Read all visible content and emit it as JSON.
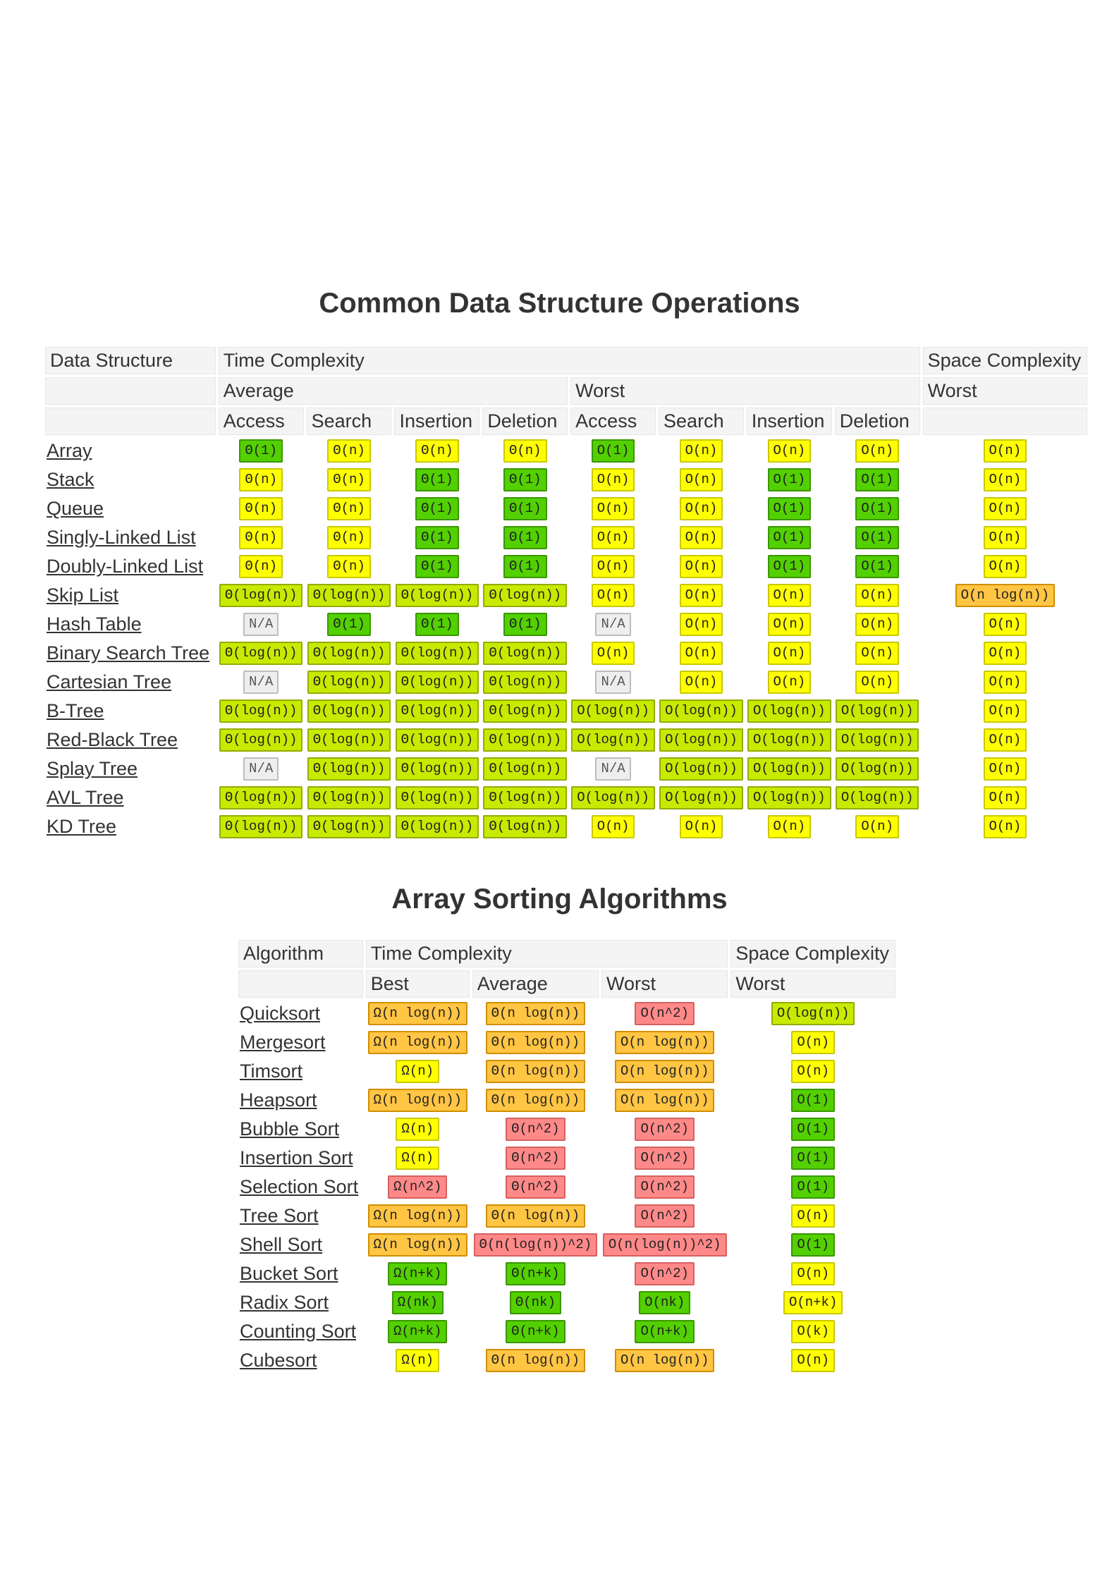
{
  "ds": {
    "title": "Common Data Structure Operations",
    "headers": {
      "structure": "Data Structure",
      "time": "Time Complexity",
      "space": "Space Complexity",
      "average": "Average",
      "worst": "Worst",
      "space_worst": "Worst",
      "ops": [
        "Access",
        "Search",
        "Insertion",
        "Deletion",
        "Access",
        "Search",
        "Insertion",
        "Deletion"
      ]
    },
    "rows": [
      {
        "name": "Array",
        "cells": [
          [
            "Θ(1)",
            "green"
          ],
          [
            "Θ(n)",
            "yellow"
          ],
          [
            "Θ(n)",
            "yellow"
          ],
          [
            "Θ(n)",
            "yellow"
          ],
          [
            "O(1)",
            "green"
          ],
          [
            "O(n)",
            "yellow"
          ],
          [
            "O(n)",
            "yellow"
          ],
          [
            "O(n)",
            "yellow"
          ],
          [
            "O(n)",
            "yellow"
          ]
        ]
      },
      {
        "name": "Stack",
        "cells": [
          [
            "Θ(n)",
            "yellow"
          ],
          [
            "Θ(n)",
            "yellow"
          ],
          [
            "Θ(1)",
            "green"
          ],
          [
            "Θ(1)",
            "green"
          ],
          [
            "O(n)",
            "yellow"
          ],
          [
            "O(n)",
            "yellow"
          ],
          [
            "O(1)",
            "green"
          ],
          [
            "O(1)",
            "green"
          ],
          [
            "O(n)",
            "yellow"
          ]
        ]
      },
      {
        "name": "Queue",
        "cells": [
          [
            "Θ(n)",
            "yellow"
          ],
          [
            "Θ(n)",
            "yellow"
          ],
          [
            "Θ(1)",
            "green"
          ],
          [
            "Θ(1)",
            "green"
          ],
          [
            "O(n)",
            "yellow"
          ],
          [
            "O(n)",
            "yellow"
          ],
          [
            "O(1)",
            "green"
          ],
          [
            "O(1)",
            "green"
          ],
          [
            "O(n)",
            "yellow"
          ]
        ]
      },
      {
        "name": "Singly-Linked List",
        "cells": [
          [
            "Θ(n)",
            "yellow"
          ],
          [
            "Θ(n)",
            "yellow"
          ],
          [
            "Θ(1)",
            "green"
          ],
          [
            "Θ(1)",
            "green"
          ],
          [
            "O(n)",
            "yellow"
          ],
          [
            "O(n)",
            "yellow"
          ],
          [
            "O(1)",
            "green"
          ],
          [
            "O(1)",
            "green"
          ],
          [
            "O(n)",
            "yellow"
          ]
        ]
      },
      {
        "name": "Doubly-Linked List",
        "cells": [
          [
            "Θ(n)",
            "yellow"
          ],
          [
            "Θ(n)",
            "yellow"
          ],
          [
            "Θ(1)",
            "green"
          ],
          [
            "Θ(1)",
            "green"
          ],
          [
            "O(n)",
            "yellow"
          ],
          [
            "O(n)",
            "yellow"
          ],
          [
            "O(1)",
            "green"
          ],
          [
            "O(1)",
            "green"
          ],
          [
            "O(n)",
            "yellow"
          ]
        ]
      },
      {
        "name": "Skip List",
        "cells": [
          [
            "Θ(log(n))",
            "lightgreen"
          ],
          [
            "Θ(log(n))",
            "lightgreen"
          ],
          [
            "Θ(log(n))",
            "lightgreen"
          ],
          [
            "Θ(log(n))",
            "lightgreen"
          ],
          [
            "O(n)",
            "yellow"
          ],
          [
            "O(n)",
            "yellow"
          ],
          [
            "O(n)",
            "yellow"
          ],
          [
            "O(n)",
            "yellow"
          ],
          [
            "O(n log(n))",
            "orange"
          ]
        ]
      },
      {
        "name": "Hash Table",
        "cells": [
          [
            "N/A",
            "gray"
          ],
          [
            "Θ(1)",
            "green"
          ],
          [
            "Θ(1)",
            "green"
          ],
          [
            "Θ(1)",
            "green"
          ],
          [
            "N/A",
            "gray"
          ],
          [
            "O(n)",
            "yellow"
          ],
          [
            "O(n)",
            "yellow"
          ],
          [
            "O(n)",
            "yellow"
          ],
          [
            "O(n)",
            "yellow"
          ]
        ]
      },
      {
        "name": "Binary Search Tree",
        "cells": [
          [
            "Θ(log(n))",
            "lightgreen"
          ],
          [
            "Θ(log(n))",
            "lightgreen"
          ],
          [
            "Θ(log(n))",
            "lightgreen"
          ],
          [
            "Θ(log(n))",
            "lightgreen"
          ],
          [
            "O(n)",
            "yellow"
          ],
          [
            "O(n)",
            "yellow"
          ],
          [
            "O(n)",
            "yellow"
          ],
          [
            "O(n)",
            "yellow"
          ],
          [
            "O(n)",
            "yellow"
          ]
        ]
      },
      {
        "name": "Cartesian Tree",
        "cells": [
          [
            "N/A",
            "gray"
          ],
          [
            "Θ(log(n))",
            "lightgreen"
          ],
          [
            "Θ(log(n))",
            "lightgreen"
          ],
          [
            "Θ(log(n))",
            "lightgreen"
          ],
          [
            "N/A",
            "gray"
          ],
          [
            "O(n)",
            "yellow"
          ],
          [
            "O(n)",
            "yellow"
          ],
          [
            "O(n)",
            "yellow"
          ],
          [
            "O(n)",
            "yellow"
          ]
        ]
      },
      {
        "name": "B-Tree",
        "cells": [
          [
            "Θ(log(n))",
            "lightgreen"
          ],
          [
            "Θ(log(n))",
            "lightgreen"
          ],
          [
            "Θ(log(n))",
            "lightgreen"
          ],
          [
            "Θ(log(n))",
            "lightgreen"
          ],
          [
            "O(log(n))",
            "lightgreen"
          ],
          [
            "O(log(n))",
            "lightgreen"
          ],
          [
            "O(log(n))",
            "lightgreen"
          ],
          [
            "O(log(n))",
            "lightgreen"
          ],
          [
            "O(n)",
            "yellow"
          ]
        ]
      },
      {
        "name": "Red-Black Tree",
        "cells": [
          [
            "Θ(log(n))",
            "lightgreen"
          ],
          [
            "Θ(log(n))",
            "lightgreen"
          ],
          [
            "Θ(log(n))",
            "lightgreen"
          ],
          [
            "Θ(log(n))",
            "lightgreen"
          ],
          [
            "O(log(n))",
            "lightgreen"
          ],
          [
            "O(log(n))",
            "lightgreen"
          ],
          [
            "O(log(n))",
            "lightgreen"
          ],
          [
            "O(log(n))",
            "lightgreen"
          ],
          [
            "O(n)",
            "yellow"
          ]
        ]
      },
      {
        "name": "Splay Tree",
        "cells": [
          [
            "N/A",
            "gray"
          ],
          [
            "Θ(log(n))",
            "lightgreen"
          ],
          [
            "Θ(log(n))",
            "lightgreen"
          ],
          [
            "Θ(log(n))",
            "lightgreen"
          ],
          [
            "N/A",
            "gray"
          ],
          [
            "O(log(n))",
            "lightgreen"
          ],
          [
            "O(log(n))",
            "lightgreen"
          ],
          [
            "O(log(n))",
            "lightgreen"
          ],
          [
            "O(n)",
            "yellow"
          ]
        ]
      },
      {
        "name": "AVL Tree",
        "cells": [
          [
            "Θ(log(n))",
            "lightgreen"
          ],
          [
            "Θ(log(n))",
            "lightgreen"
          ],
          [
            "Θ(log(n))",
            "lightgreen"
          ],
          [
            "Θ(log(n))",
            "lightgreen"
          ],
          [
            "O(log(n))",
            "lightgreen"
          ],
          [
            "O(log(n))",
            "lightgreen"
          ],
          [
            "O(log(n))",
            "lightgreen"
          ],
          [
            "O(log(n))",
            "lightgreen"
          ],
          [
            "O(n)",
            "yellow"
          ]
        ]
      },
      {
        "name": "KD Tree",
        "cells": [
          [
            "Θ(log(n))",
            "lightgreen"
          ],
          [
            "Θ(log(n))",
            "lightgreen"
          ],
          [
            "Θ(log(n))",
            "lightgreen"
          ],
          [
            "Θ(log(n))",
            "lightgreen"
          ],
          [
            "O(n)",
            "yellow"
          ],
          [
            "O(n)",
            "yellow"
          ],
          [
            "O(n)",
            "yellow"
          ],
          [
            "O(n)",
            "yellow"
          ],
          [
            "O(n)",
            "yellow"
          ]
        ]
      }
    ]
  },
  "sort": {
    "title": "Array Sorting Algorithms",
    "headers": {
      "algorithm": "Algorithm",
      "time": "Time Complexity",
      "space": "Space Complexity",
      "best": "Best",
      "average": "Average",
      "worst": "Worst",
      "space_worst": "Worst"
    },
    "rows": [
      {
        "name": "Quicksort",
        "cells": [
          [
            "Ω(n log(n))",
            "orange"
          ],
          [
            "Θ(n log(n))",
            "orange"
          ],
          [
            "O(n^2)",
            "red"
          ],
          [
            "O(log(n))",
            "lightgreen"
          ]
        ]
      },
      {
        "name": "Mergesort",
        "cells": [
          [
            "Ω(n log(n))",
            "orange"
          ],
          [
            "Θ(n log(n))",
            "orange"
          ],
          [
            "O(n log(n))",
            "orange"
          ],
          [
            "O(n)",
            "yellow"
          ]
        ]
      },
      {
        "name": "Timsort",
        "cells": [
          [
            "Ω(n)",
            "yellow"
          ],
          [
            "Θ(n log(n))",
            "orange"
          ],
          [
            "O(n log(n))",
            "orange"
          ],
          [
            "O(n)",
            "yellow"
          ]
        ]
      },
      {
        "name": "Heapsort",
        "cells": [
          [
            "Ω(n log(n))",
            "orange"
          ],
          [
            "Θ(n log(n))",
            "orange"
          ],
          [
            "O(n log(n))",
            "orange"
          ],
          [
            "O(1)",
            "green"
          ]
        ]
      },
      {
        "name": "Bubble Sort",
        "cells": [
          [
            "Ω(n)",
            "yellow"
          ],
          [
            "Θ(n^2)",
            "red"
          ],
          [
            "O(n^2)",
            "red"
          ],
          [
            "O(1)",
            "green"
          ]
        ]
      },
      {
        "name": "Insertion Sort",
        "cells": [
          [
            "Ω(n)",
            "yellow"
          ],
          [
            "Θ(n^2)",
            "red"
          ],
          [
            "O(n^2)",
            "red"
          ],
          [
            "O(1)",
            "green"
          ]
        ]
      },
      {
        "name": "Selection Sort",
        "cells": [
          [
            "Ω(n^2)",
            "red"
          ],
          [
            "Θ(n^2)",
            "red"
          ],
          [
            "O(n^2)",
            "red"
          ],
          [
            "O(1)",
            "green"
          ]
        ]
      },
      {
        "name": "Tree Sort",
        "cells": [
          [
            "Ω(n log(n))",
            "orange"
          ],
          [
            "Θ(n log(n))",
            "orange"
          ],
          [
            "O(n^2)",
            "red"
          ],
          [
            "O(n)",
            "yellow"
          ]
        ]
      },
      {
        "name": "Shell Sort",
        "cells": [
          [
            "Ω(n log(n))",
            "orange"
          ],
          [
            "Θ(n(log(n))^2)",
            "red"
          ],
          [
            "O(n(log(n))^2)",
            "red"
          ],
          [
            "O(1)",
            "green"
          ]
        ]
      },
      {
        "name": "Bucket Sort",
        "cells": [
          [
            "Ω(n+k)",
            "green"
          ],
          [
            "Θ(n+k)",
            "green"
          ],
          [
            "O(n^2)",
            "red"
          ],
          [
            "O(n)",
            "yellow"
          ]
        ]
      },
      {
        "name": "Radix Sort",
        "cells": [
          [
            "Ω(nk)",
            "green"
          ],
          [
            "Θ(nk)",
            "green"
          ],
          [
            "O(nk)",
            "green"
          ],
          [
            "O(n+k)",
            "yellow"
          ]
        ]
      },
      {
        "name": "Counting Sort",
        "cells": [
          [
            "Ω(n+k)",
            "green"
          ],
          [
            "Θ(n+k)",
            "green"
          ],
          [
            "O(n+k)",
            "green"
          ],
          [
            "O(k)",
            "yellow"
          ]
        ]
      },
      {
        "name": "Cubesort",
        "cells": [
          [
            "Ω(n)",
            "yellow"
          ],
          [
            "Θ(n log(n))",
            "orange"
          ],
          [
            "O(n log(n))",
            "orange"
          ],
          [
            "O(n)",
            "yellow"
          ]
        ]
      }
    ]
  }
}
